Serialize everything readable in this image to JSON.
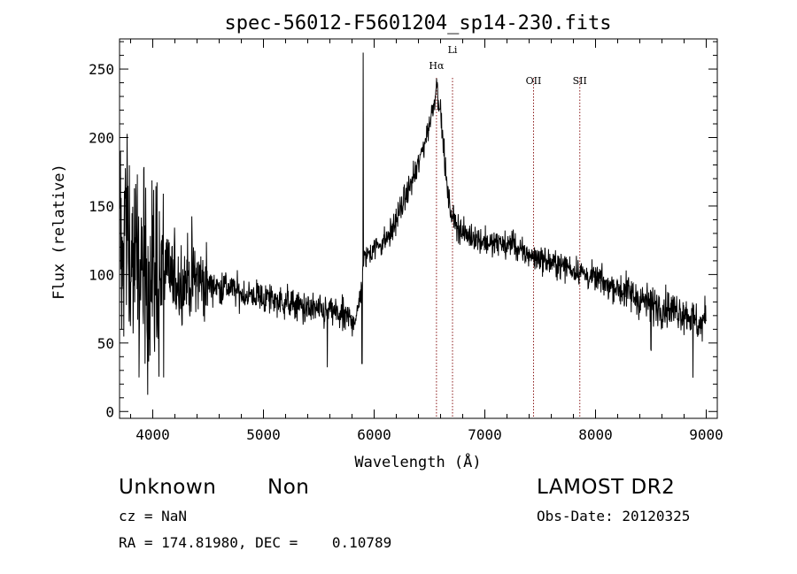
{
  "chart_data": {
    "type": "line",
    "title": "spec-56012-F5601204_sp14-230.fits",
    "xlabel": "Wavelength (Å)",
    "ylabel": "Flux (relative)",
    "xlim": [
      3700,
      9100
    ],
    "ylim": [
      -5,
      272
    ],
    "xticks": [
      4000,
      5000,
      6000,
      7000,
      8000,
      9000
    ],
    "yticks": [
      0,
      50,
      100,
      150,
      200,
      250
    ],
    "line_color": "#000000",
    "marker_color": "#8b1a1a",
    "grid": false,
    "series": [
      {
        "values_note": "",
        "x": [
          3720,
          3760,
          3800,
          3840,
          3880,
          3920,
          3960,
          4000,
          4050,
          4100,
          4150,
          4200,
          4250,
          4300,
          4350,
          4400,
          4450,
          4500,
          4550,
          4600,
          4650,
          4700,
          4750,
          4800,
          4850,
          4900,
          4950,
          5000,
          5050,
          5100,
          5150,
          5200,
          5250,
          5300,
          5350,
          5400,
          5450,
          5500,
          5550,
          5600,
          5650,
          5700,
          5750,
          5800,
          5850,
          5880,
          5900,
          5950,
          6000,
          6050,
          6100,
          6150,
          6200,
          6250,
          6300,
          6350,
          6400,
          6450,
          6500,
          6540,
          6563,
          6590,
          6620,
          6650,
          6680,
          6720,
          6760,
          6800,
          6850,
          6900,
          6950,
          7000,
          7050,
          7100,
          7150,
          7200,
          7250,
          7300,
          7350,
          7400,
          7450,
          7500,
          7550,
          7600,
          7650,
          7700,
          7750,
          7800,
          7850,
          7900,
          7950,
          8000,
          8050,
          8100,
          8150,
          8200,
          8250,
          8300,
          8350,
          8400,
          8450,
          8500,
          8550,
          8600,
          8650,
          8700,
          8750,
          8800,
          8850,
          8900,
          8950,
          9000
        ],
        "y": [
          110,
          120,
          112,
          105,
          100,
          102,
          98,
          100,
          96,
          98,
          100,
          97,
          95,
          98,
          96,
          97,
          94,
          92,
          93,
          90,
          92,
          90,
          88,
          86,
          85,
          84,
          85,
          82,
          83,
          82,
          80,
          80,
          78,
          78,
          76,
          74,
          75,
          73,
          72,
          74,
          72,
          70,
          68,
          67,
          70,
          90,
          110,
          115,
          120,
          122,
          125,
          130,
          140,
          150,
          160,
          170,
          180,
          195,
          210,
          225,
          240,
          225,
          200,
          170,
          150,
          140,
          135,
          130,
          128,
          128,
          125,
          125,
          122,
          122,
          124,
          120,
          125,
          118,
          115,
          115,
          112,
          112,
          110,
          108,
          108,
          106,
          106,
          103,
          103,
          100,
          98,
          97,
          96,
          92,
          92,
          90,
          88,
          87,
          84,
          82,
          80,
          78,
          78,
          76,
          76,
          74,
          74,
          72,
          70,
          66,
          62,
          70
        ]
      }
    ],
    "annotations": [
      {
        "label": "Hα",
        "x": 6563
      },
      {
        "label": "Li",
        "x": 6708
      },
      {
        "label": "OII",
        "x": 7440
      },
      {
        "label": "SII",
        "x": 7858
      }
    ]
  },
  "info": {
    "class": "Unknown",
    "subclass": "Non",
    "survey": "LAMOST DR2",
    "cz": "cz = NaN",
    "obs_date": "Obs-Date: 20120325",
    "coords": "RA = 174.81980, DEC =    0.10789"
  }
}
